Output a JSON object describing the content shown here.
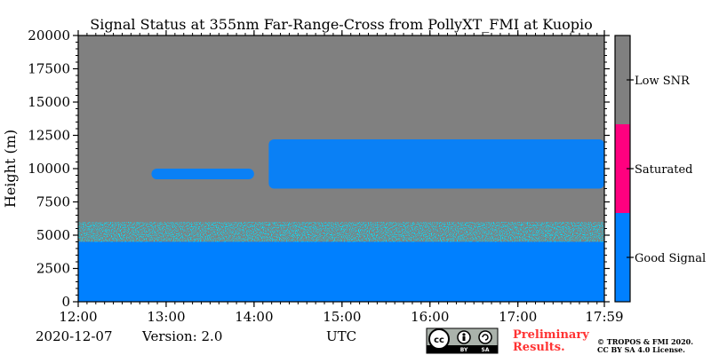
{
  "chart_data": {
    "type": "heatmap",
    "title": "Signal Status at 355nm Far-Range-Cross from PollyXT_FMI at Kuopio",
    "xlabel": "UTC",
    "ylabel": "Height (m)",
    "xlim": [
      "12:00",
      "17:59"
    ],
    "ylim": [
      0,
      20000
    ],
    "x_ticks": [
      "12:00",
      "13:00",
      "14:00",
      "15:00",
      "16:00",
      "17:00",
      "17:59"
    ],
    "y_ticks": [
      0,
      2500,
      5000,
      7500,
      10000,
      12500,
      15000,
      17500,
      20000
    ],
    "colorbar": {
      "categories": [
        "Good Signal",
        "Saturated",
        "Low SNR"
      ],
      "colors": [
        "#0080ff",
        "#ff007f",
        "#808080"
      ]
    },
    "regions": [
      {
        "category": "Good Signal",
        "x_start": "12:00",
        "x_end": "17:59",
        "y_start": 0,
        "y_end": 4500
      },
      {
        "category": "Good Signal",
        "x_start": "12:00",
        "x_end": "17:59",
        "y_start": 4500,
        "y_end": 6000,
        "note": "speckled"
      },
      {
        "category": "Good Signal",
        "x_start": "14:10",
        "x_end": "17:59",
        "y_start": 8500,
        "y_end": 12200,
        "note": "cloud layer"
      },
      {
        "category": "Good Signal",
        "x_start": "12:50",
        "x_end": "14:00",
        "y_start": 9200,
        "y_end": 10000,
        "note": "cloud layer"
      },
      {
        "category": "Low SNR",
        "x_start": "12:00",
        "x_end": "17:59",
        "y_start": 12500,
        "y_end": 20000
      }
    ]
  },
  "footer": {
    "date": "2020-12-07",
    "version": "Version: 2.0",
    "utc": "UTC",
    "preliminary_line1": "Preliminary",
    "preliminary_line2": "Results.",
    "copyright_line1": "© TROPOS & FMI 2020.",
    "copyright_line2": "CC BY SA 4.0 License.",
    "license_badge": {
      "label_by": "BY",
      "label_sa": "SA"
    }
  }
}
